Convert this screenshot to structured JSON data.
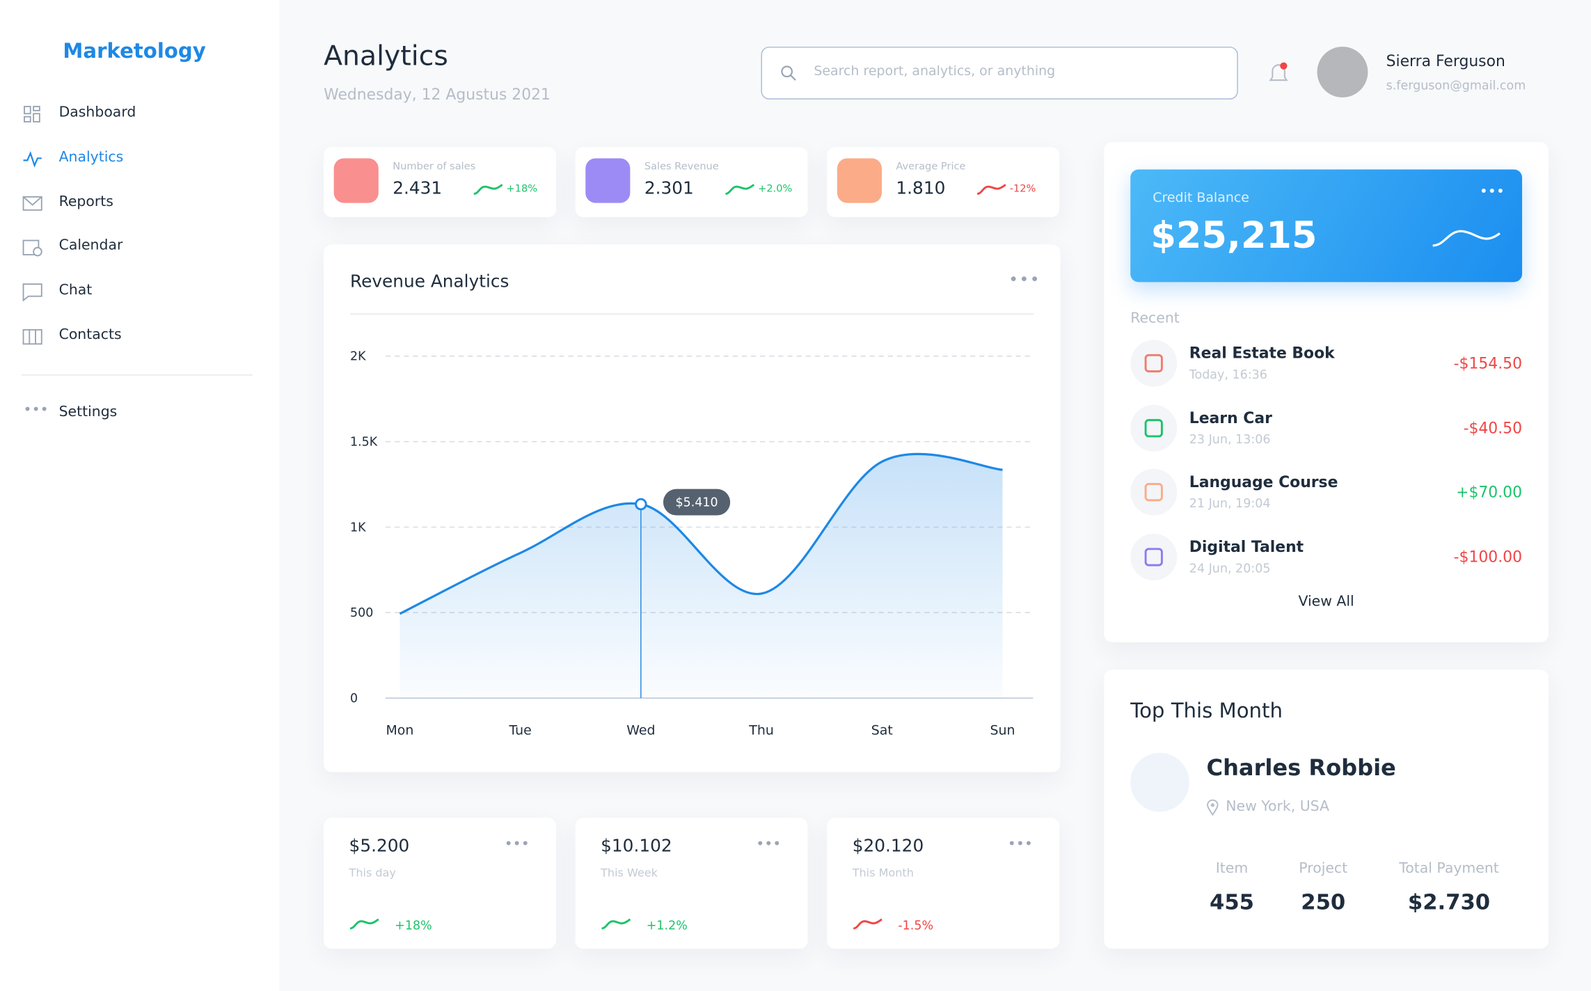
{
  "brand": "Marketology",
  "nav": [
    "Dashboard",
    "Analytics",
    "Reports",
    "Calendar",
    "Chat",
    "Contacts",
    "Settings"
  ],
  "header": {
    "title": "Analytics",
    "date": "Wednesday, 12 Agustus 2021",
    "search_placeholder": "Search report, analytics, or anything",
    "user_name": "Sierra Ferguson",
    "user_email": "s.ferguson@gmail.com"
  },
  "stats": [
    {
      "label": "Number of sales",
      "value": "2.431",
      "change": "+18%"
    },
    {
      "label": "Sales Revenue",
      "value": "2.301",
      "change": "+2.0%"
    },
    {
      "label": "Average Price",
      "value": "1.810",
      "change": "-12%"
    }
  ],
  "chart_data": {
    "type": "line",
    "title": "Revenue Analytics",
    "categories": [
      "Mon",
      "Tue",
      "Wed",
      "Thu",
      "Sat",
      "Sun"
    ],
    "values": [
      493,
      849,
      1134,
      611,
      1383,
      1335
    ],
    "color": "#1e88e5",
    "ylim": [
      0,
      2000
    ],
    "yticks": [
      0,
      500,
      {
        "value": 1000,
        "label": "1K"
      },
      {
        "value": 1500,
        "label": "1.5K"
      },
      {
        "value": 2000,
        "label": "2K"
      }
    ],
    "grid": true,
    "annotation": {
      "text": "$5.410",
      "category": "Wed"
    }
  },
  "summary": [
    {
      "value": "$5.200",
      "label": "This day",
      "change": "+18%"
    },
    {
      "value": "$10.102",
      "label": "This Week",
      "change": "+1.2%"
    },
    {
      "value": "$20.120",
      "label": "This Month",
      "change": "-1.5%"
    }
  ],
  "credit": {
    "label": "Credit Balance",
    "amount": "$25,215"
  },
  "recent": {
    "title": "Recent",
    "items": [
      {
        "name": "Real Estate Book",
        "time": "Today, 16:36",
        "amount": "-$154.50"
      },
      {
        "name": "Learn Car",
        "time": "23 Jun, 13:06",
        "amount": "-$40.50"
      },
      {
        "name": "Language Course",
        "time": "21 Jun, 19:04",
        "amount": "+$70.00"
      },
      {
        "name": "Digital Talent",
        "time": "24 Jun, 20:05",
        "amount": "-$100.00"
      }
    ],
    "view_all": "View All"
  },
  "top": {
    "title": "Top This Month",
    "name": "Charles Robbie",
    "location": "New York, USA",
    "stats": [
      {
        "label": "Item",
        "value": "455"
      },
      {
        "label": "Project",
        "value": "250"
      },
      {
        "label": "Total Payment",
        "value": "$2.730"
      }
    ]
  }
}
